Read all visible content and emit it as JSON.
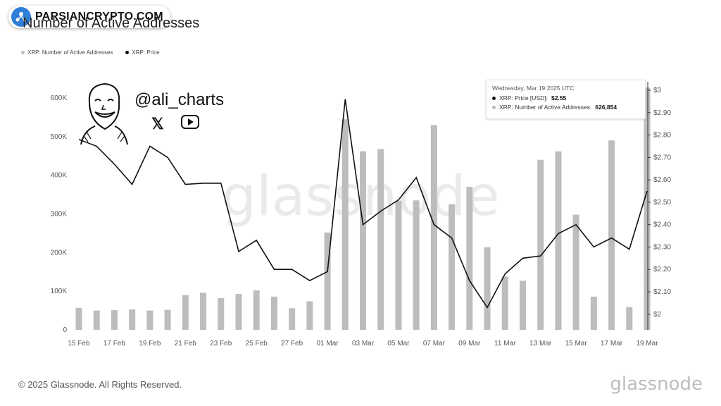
{
  "header": {
    "title": "Number of Active Addresses"
  },
  "badge": {
    "text": "PARSIANCRYPTO.COM"
  },
  "legend": [
    {
      "label": "XRP: Number of Active Addresses",
      "color": "#bdbdbd"
    },
    {
      "label": "XRP: Price",
      "color": "#111111"
    }
  ],
  "overlay": {
    "handle": "@ali_charts",
    "x_icon": "𝕏"
  },
  "tooltip": {
    "date": "Wednesday, Mar 19 2025 UTC",
    "price_label": "XRP: Price [USD]:",
    "price_value": "$2.55",
    "addr_label": "XRP: Number of Active Addresses:",
    "addr_value": "626,854"
  },
  "watermark": "glassnode",
  "footer": {
    "copyright": "© 2025 Glassnode. All Rights Reserved.",
    "logo": "glassnode"
  },
  "chart_data": {
    "type": "bar",
    "x": [
      "15 Feb",
      "16 Feb",
      "17 Feb",
      "18 Feb",
      "19 Feb",
      "20 Feb",
      "21 Feb",
      "22 Feb",
      "23 Feb",
      "24 Feb",
      "25 Feb",
      "26 Feb",
      "27 Feb",
      "28 Feb",
      "01 Mar",
      "02 Mar",
      "03 Mar",
      "04 Mar",
      "05 Mar",
      "06 Mar",
      "07 Mar",
      "08 Mar",
      "09 Mar",
      "10 Mar",
      "11 Mar",
      "12 Mar",
      "13 Mar",
      "14 Mar",
      "15 Mar",
      "16 Mar",
      "17 Mar",
      "18 Mar",
      "19 Mar"
    ],
    "x_tick_labels": [
      "15 Feb",
      "17 Feb",
      "19 Feb",
      "21 Feb",
      "23 Feb",
      "25 Feb",
      "27 Feb",
      "01 Mar",
      "03 Mar",
      "05 Mar",
      "07 Mar",
      "09 Mar",
      "11 Mar",
      "13 Mar",
      "15 Mar",
      "17 Mar",
      "19 Mar"
    ],
    "series": [
      {
        "name": "XRP: Number of Active Addresses",
        "type": "bar",
        "axis": "left",
        "color": "#bdbdbd",
        "values": [
          57000,
          50000,
          51000,
          53000,
          50000,
          52000,
          90000,
          96000,
          82000,
          93000,
          102000,
          86000,
          56000,
          74000,
          252000,
          545000,
          462000,
          468000,
          334000,
          335000,
          530000,
          325000,
          370000,
          214000,
          138000,
          127000,
          440000,
          462000,
          298000,
          86000,
          490000,
          59000,
          626854
        ]
      },
      {
        "name": "XRP: Price",
        "type": "line",
        "axis": "right",
        "color": "#111111",
        "values": [
          2.78,
          2.75,
          2.67,
          2.58,
          2.75,
          2.7,
          2.58,
          2.585,
          2.585,
          2.28,
          2.33,
          2.2,
          2.2,
          2.15,
          2.19,
          2.96,
          2.4,
          2.46,
          2.51,
          2.61,
          2.4,
          2.34,
          2.15,
          2.03,
          2.18,
          2.25,
          2.26,
          2.36,
          2.4,
          2.3,
          2.34,
          2.29,
          2.55
        ]
      }
    ],
    "y_left": {
      "ticks": [
        0,
        100000,
        200000,
        300000,
        400000,
        500000,
        600000
      ],
      "tick_labels": [
        "0",
        "100K",
        "200K",
        "300K",
        "400K",
        "500K",
        "600K"
      ],
      "lim": [
        0,
        620000
      ]
    },
    "y_right": {
      "ticks": [
        2,
        2.1,
        2.2,
        2.3,
        2.4,
        2.5,
        2.6,
        2.7,
        2.8,
        2.9,
        3
      ],
      "tick_labels": [
        "$2",
        "$2.10",
        "$2.20",
        "$2.30",
        "$2.40",
        "$2.50",
        "$2.60",
        "$2.70",
        "$2.80",
        "$2.90",
        "$3"
      ],
      "lim": [
        1.93,
        3.0
      ]
    },
    "grid": false
  }
}
